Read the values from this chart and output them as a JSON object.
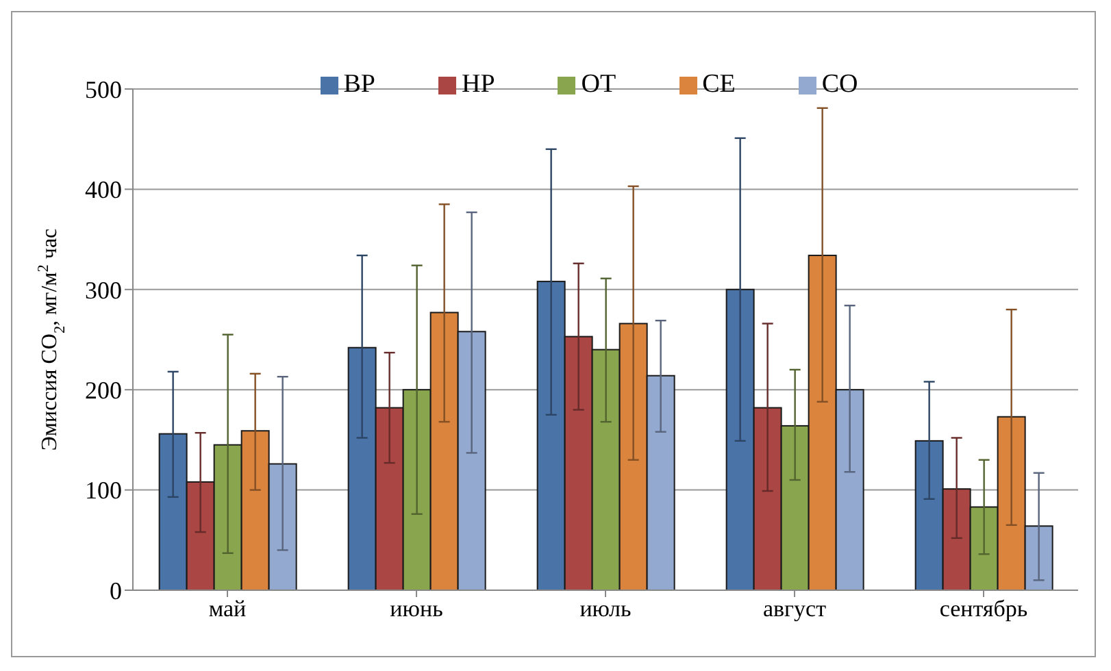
{
  "chart_data": {
    "type": "bar",
    "ylabel": "Эмиссия CO$_{2}$, мг/м$^{2}$ час",
    "categories": [
      "май",
      "июнь",
      "июль",
      "август",
      "сентябрь"
    ],
    "series": [
      {
        "name": "ВР",
        "color": "#4a73a8",
        "values": [
          156,
          242,
          308,
          300,
          149
        ],
        "errors": [
          [
            93,
            218
          ],
          [
            152,
            334
          ],
          [
            175,
            440
          ],
          [
            149,
            451
          ],
          [
            91,
            208
          ]
        ]
      },
      {
        "name": "НР",
        "color": "#aa4643",
        "values": [
          108,
          182,
          253,
          182,
          101
        ],
        "errors": [
          [
            58,
            157
          ],
          [
            127,
            237
          ],
          [
            180,
            326
          ],
          [
            99,
            266
          ],
          [
            52,
            152
          ]
        ]
      },
      {
        "name": "ОТ",
        "color": "#89a54e",
        "values": [
          145,
          200,
          240,
          164,
          83
        ],
        "errors": [
          [
            37,
            255
          ],
          [
            76,
            324
          ],
          [
            168,
            311
          ],
          [
            110,
            220
          ],
          [
            36,
            130
          ]
        ]
      },
      {
        "name": "СЕ",
        "color": "#db843d",
        "values": [
          159,
          277,
          266,
          334,
          173
        ],
        "errors": [
          [
            100,
            216
          ],
          [
            168,
            385
          ],
          [
            130,
            403
          ],
          [
            188,
            481
          ],
          [
            65,
            280
          ]
        ]
      },
      {
        "name": "СО",
        "color": "#93a9d0",
        "values": [
          126,
          258,
          214,
          200,
          64
        ],
        "errors": [
          [
            40,
            213
          ],
          [
            137,
            377
          ],
          [
            158,
            269
          ],
          [
            118,
            284
          ],
          [
            10,
            117
          ]
        ]
      }
    ],
    "ylim": [
      0,
      500
    ],
    "yticks": [
      0,
      100,
      200,
      300,
      400,
      500
    ],
    "grid": "y",
    "legend": "top"
  }
}
